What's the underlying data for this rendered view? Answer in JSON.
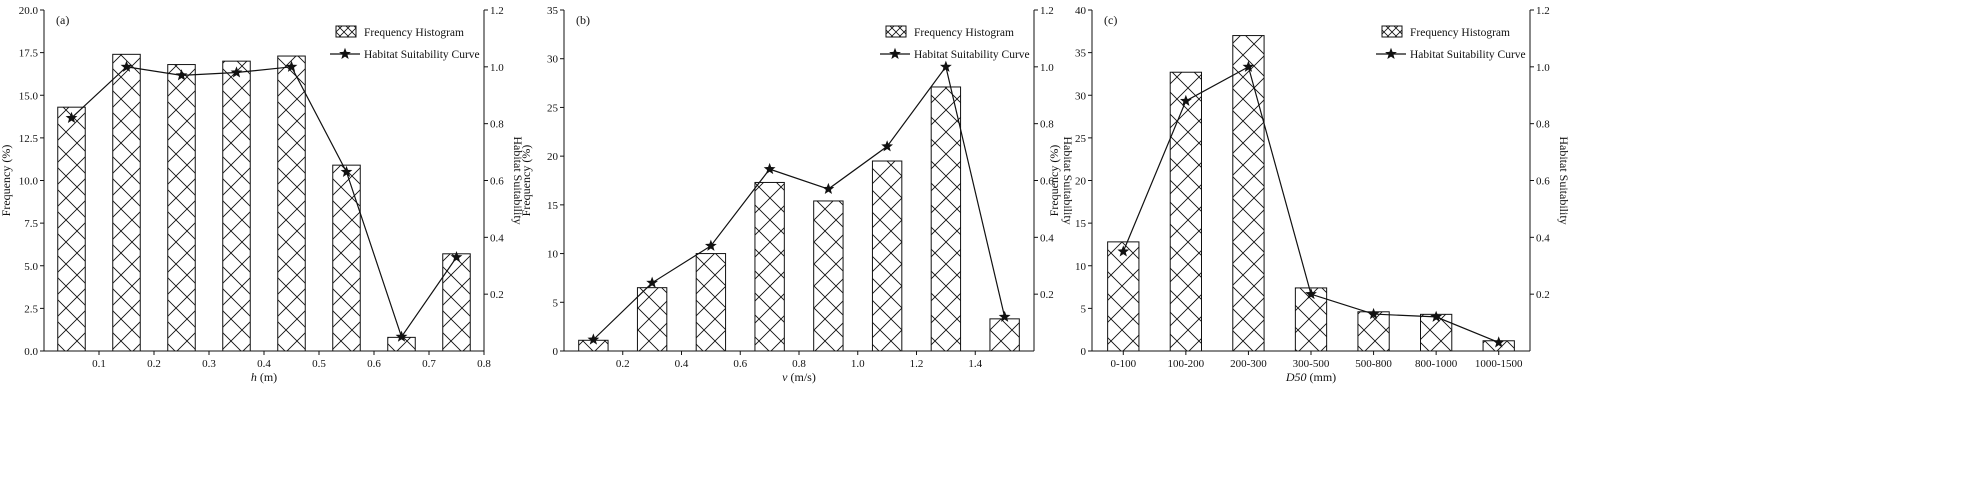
{
  "chart_data": [
    {
      "type": "bar",
      "panel_label": "(a)",
      "xlabel_italic": "h",
      "xlabel_unit": " (m)",
      "ylabel": "Frequency (%)",
      "y2label": "Habitat Suitability",
      "legend": {
        "position": "top-right",
        "bar_label": "Frequency Histogram",
        "curve_label": "Habitat Suitability Curve"
      },
      "xaxis": {
        "kind": "numeric",
        "lim": [
          0,
          0.8
        ],
        "ticks": [
          0.1,
          0.2,
          0.3,
          0.4,
          0.5,
          0.6,
          0.7,
          0.8
        ],
        "tick_labels": [
          "0.1",
          "0.2",
          "0.3",
          "0.4",
          "0.5",
          "0.6",
          "0.7",
          "0.8"
        ],
        "bar_width": 0.05
      },
      "yaxis": {
        "lim": [
          0,
          20
        ],
        "ticks": [
          0,
          2.5,
          5,
          7.5,
          10,
          12.5,
          15,
          17.5,
          20
        ],
        "tick_labels": [
          "0.0",
          "2.5",
          "5.0",
          "7.5",
          "10.0",
          "12.5",
          "15.0",
          "17.5",
          "20.0"
        ]
      },
      "y2axis": {
        "lim": [
          0,
          1.2
        ],
        "ticks": [
          0.2,
          0.4,
          0.6,
          0.8,
          1.0,
          1.2
        ],
        "tick_labels": [
          "0.2",
          "0.4",
          "0.6",
          "0.8",
          "1.0",
          "1.2"
        ]
      },
      "x": [
        0.05,
        0.15,
        0.25,
        0.35,
        0.45,
        0.55,
        0.65,
        0.75
      ],
      "series": [
        {
          "name": "Frequency Histogram",
          "kind": "bar",
          "axis": "left",
          "values": [
            14.3,
            17.4,
            16.8,
            17.0,
            17.3,
            10.9,
            0.8,
            5.7
          ]
        },
        {
          "name": "Habitat Suitability Curve",
          "kind": "line",
          "axis": "right",
          "values": [
            0.82,
            1.0,
            0.97,
            0.98,
            1.0,
            0.63,
            0.05,
            0.33
          ]
        }
      ]
    },
    {
      "type": "bar",
      "panel_label": "(b)",
      "xlabel_italic": "v",
      "xlabel_unit": " (m/s)",
      "ylabel": "Frequency (%)",
      "y2label": "Habitat Suitability",
      "legend": {
        "position": "top-right",
        "bar_label": "Frequency Histogram",
        "curve_label": "Habitat Suitability Curve"
      },
      "xaxis": {
        "kind": "numeric",
        "lim": [
          0,
          1.6
        ],
        "ticks": [
          0.2,
          0.4,
          0.6,
          0.8,
          1.0,
          1.2,
          1.4
        ],
        "tick_labels": [
          "0.2",
          "0.4",
          "0.6",
          "0.8",
          "1.0",
          "1.2",
          "1.4"
        ],
        "bar_width": 0.1
      },
      "yaxis": {
        "lim": [
          0,
          35
        ],
        "ticks": [
          0,
          5,
          10,
          15,
          20,
          25,
          30,
          35
        ],
        "tick_labels": [
          "0",
          "5",
          "10",
          "15",
          "20",
          "25",
          "30",
          "35"
        ]
      },
      "y2axis": {
        "lim": [
          0,
          1.2
        ],
        "ticks": [
          0.2,
          0.4,
          0.6,
          0.8,
          1.0,
          1.2
        ],
        "tick_labels": [
          "0.2",
          "0.4",
          "0.6",
          "0.8",
          "1.0",
          "1.2"
        ]
      },
      "x": [
        0.1,
        0.3,
        0.5,
        0.7,
        0.9,
        1.1,
        1.3,
        1.5
      ],
      "series": [
        {
          "name": "Frequency Histogram",
          "kind": "bar",
          "axis": "left",
          "values": [
            1.1,
            6.5,
            10.0,
            17.3,
            15.4,
            19.5,
            27.1,
            3.3
          ]
        },
        {
          "name": "Habitat Suitability Curve",
          "kind": "line",
          "axis": "right",
          "values": [
            0.04,
            0.24,
            0.37,
            0.64,
            0.57,
            0.72,
            1.0,
            0.12
          ]
        }
      ]
    },
    {
      "type": "bar",
      "panel_label": "(c)",
      "xlabel_italic": "D50",
      "xlabel_unit": " (mm)",
      "ylabel": "Frequency (%)",
      "y2label": "Habitat Suitability",
      "legend": {
        "position": "top-right",
        "bar_label": "Frequency Histogram",
        "curve_label": "Habitat Suitability Curve"
      },
      "xaxis": {
        "kind": "category"
      },
      "categories": [
        "0-100",
        "100-200",
        "200-300",
        "300-500",
        "500-800",
        "800-1000",
        "1000-1500"
      ],
      "yaxis": {
        "lim": [
          0,
          40
        ],
        "ticks": [
          0,
          5,
          10,
          15,
          20,
          25,
          30,
          35,
          40
        ],
        "tick_labels": [
          "0",
          "5",
          "10",
          "15",
          "20",
          "25",
          "30",
          "35",
          "40"
        ]
      },
      "y2axis": {
        "lim": [
          0,
          1.2
        ],
        "ticks": [
          0.2,
          0.4,
          0.6,
          0.8,
          1.0,
          1.2
        ],
        "tick_labels": [
          "0.2",
          "0.4",
          "0.6",
          "0.8",
          "1.0",
          "1.2"
        ]
      },
      "series": [
        {
          "name": "Frequency Histogram",
          "kind": "bar",
          "axis": "left",
          "values": [
            12.8,
            32.7,
            37.0,
            7.4,
            4.6,
            4.3,
            1.2
          ]
        },
        {
          "name": "Habitat Suitability Curve",
          "kind": "line",
          "axis": "right",
          "values": [
            0.35,
            0.88,
            1.0,
            0.2,
            0.13,
            0.12,
            0.03
          ]
        }
      ]
    }
  ]
}
